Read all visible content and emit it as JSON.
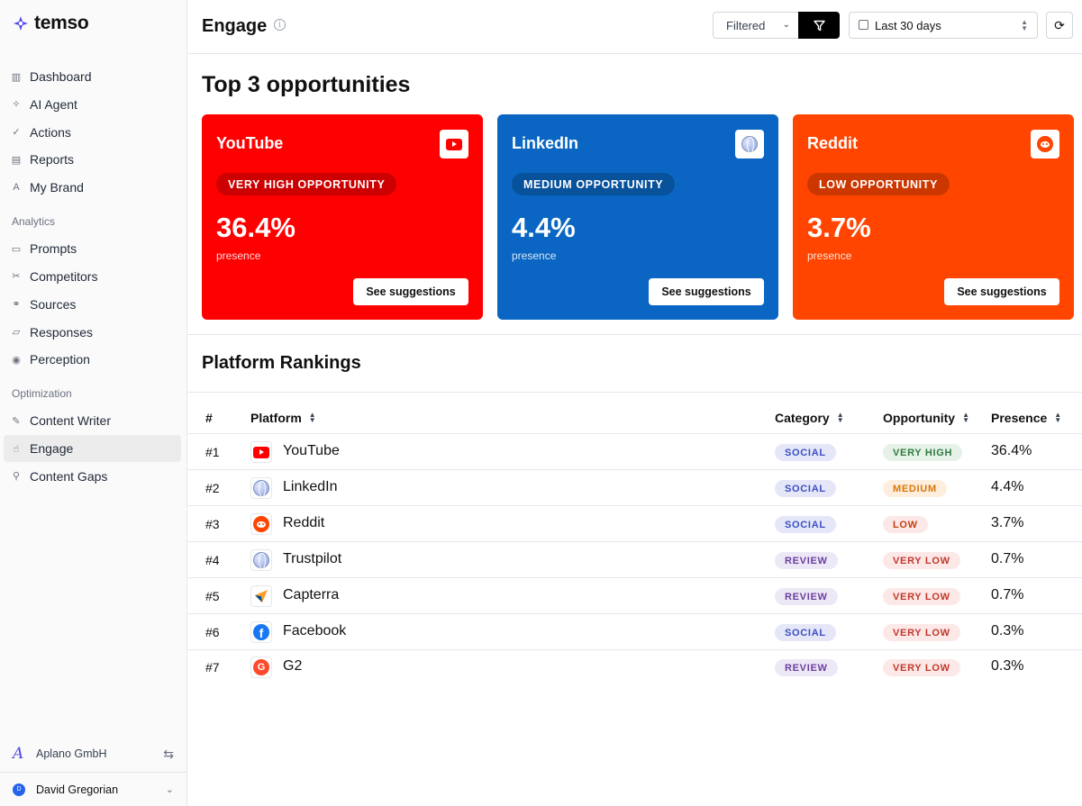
{
  "brand": {
    "name": "temso",
    "color": "#4f46e5"
  },
  "sidebar": {
    "main": [
      {
        "label": "Dashboard",
        "icon": "bar-chart-icon"
      },
      {
        "label": "AI Agent",
        "icon": "sparkles-icon"
      },
      {
        "label": "Actions",
        "icon": "check-icon"
      },
      {
        "label": "Reports",
        "icon": "file-icon"
      },
      {
        "label": "My Brand",
        "icon": "brand-a-icon"
      }
    ],
    "analytics_label": "Analytics",
    "analytics": [
      {
        "label": "Prompts",
        "icon": "message-icon"
      },
      {
        "label": "Competitors",
        "icon": "scissors-icon"
      },
      {
        "label": "Sources",
        "icon": "link-icon"
      },
      {
        "label": "Responses",
        "icon": "chat-icon"
      },
      {
        "label": "Perception",
        "icon": "eye-icon"
      }
    ],
    "optimization_label": "Optimization",
    "optimization": [
      {
        "label": "Content Writer",
        "icon": "pencil-icon"
      },
      {
        "label": "Engage",
        "icon": "pointer-icon",
        "active": true
      },
      {
        "label": "Content Gaps",
        "icon": "search-icon"
      }
    ],
    "org": {
      "logo_letter": "A",
      "name": "Aplano GmbH"
    },
    "user": {
      "initial": "D",
      "name": "David Gregorian"
    }
  },
  "header": {
    "title": "Engage",
    "filter_value": "Filtered",
    "date_range": "Last 30 days"
  },
  "opportunities": {
    "title": "Top 3 opportunities",
    "cards": [
      {
        "platform": "YouTube",
        "level": "VERY HIGH OPPORTUNITY",
        "value": "36.4%",
        "sub": "presence",
        "button": "See suggestions",
        "color": "#ff0000"
      },
      {
        "platform": "LinkedIn",
        "level": "MEDIUM OPPORTUNITY",
        "value": "4.4%",
        "sub": "presence",
        "button": "See suggestions",
        "color": "#0a66c2"
      },
      {
        "platform": "Reddit",
        "level": "LOW OPPORTUNITY",
        "value": "3.7%",
        "sub": "presence",
        "button": "See suggestions",
        "color": "#ff4500"
      }
    ]
  },
  "rankings": {
    "title": "Platform Rankings",
    "columns": {
      "rank": "#",
      "platform": "Platform",
      "category": "Category",
      "opportunity": "Opportunity",
      "presence": "Presence"
    },
    "rows": [
      {
        "rank": "#1",
        "platform": "YouTube",
        "logo": "youtube",
        "category": "SOCIAL",
        "opportunity": "VERY HIGH",
        "opp_class": "veryhigh",
        "presence": "36.4%"
      },
      {
        "rank": "#2",
        "platform": "LinkedIn",
        "logo": "globe",
        "category": "SOCIAL",
        "opportunity": "MEDIUM",
        "opp_class": "medium",
        "presence": "4.4%"
      },
      {
        "rank": "#3",
        "platform": "Reddit",
        "logo": "reddit",
        "category": "SOCIAL",
        "opportunity": "LOW",
        "opp_class": "low",
        "presence": "3.7%"
      },
      {
        "rank": "#4",
        "platform": "Trustpilot",
        "logo": "globe",
        "category": "REVIEW",
        "opportunity": "VERY LOW",
        "opp_class": "verylow",
        "presence": "0.7%"
      },
      {
        "rank": "#5",
        "platform": "Capterra",
        "logo": "capterra",
        "category": "REVIEW",
        "opportunity": "VERY LOW",
        "opp_class": "verylow",
        "presence": "0.7%"
      },
      {
        "rank": "#6",
        "platform": "Facebook",
        "logo": "facebook",
        "category": "SOCIAL",
        "opportunity": "VERY LOW",
        "opp_class": "verylow",
        "presence": "0.3%"
      },
      {
        "rank": "#7",
        "platform": "G2",
        "logo": "g2",
        "category": "REVIEW",
        "opportunity": "VERY LOW",
        "opp_class": "verylow",
        "presence": "0.3%"
      }
    ]
  }
}
